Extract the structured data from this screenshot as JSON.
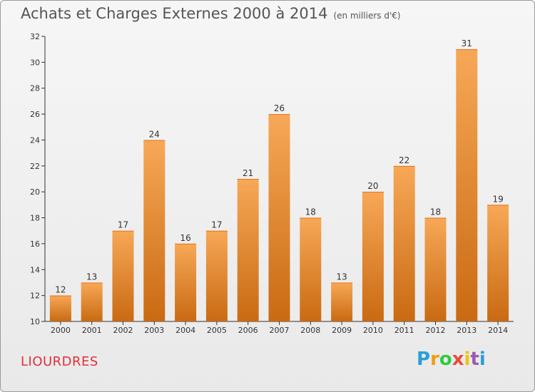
{
  "header": {
    "title": "Achats et Charges Externes 2000 à 2014",
    "subtitle": "(en milliers d'€)"
  },
  "place": "LIOURDRES",
  "logo": {
    "letters": [
      "P",
      "r",
      "o",
      "x",
      "i",
      "t",
      "i"
    ],
    "colors": [
      "#2a9fd6",
      "#f39c12",
      "#2ecc40",
      "#e74c3c",
      "#f1c40f",
      "#9b59b6",
      "#2a9fd6"
    ]
  },
  "chart_data": {
    "type": "bar",
    "title": "Achats et Charges Externes 2000 à 2014",
    "subtitle": "(en milliers d'€)",
    "categories": [
      "2000",
      "2001",
      "2002",
      "2003",
      "2004",
      "2005",
      "2006",
      "2007",
      "2008",
      "2009",
      "2010",
      "2011",
      "2012",
      "2013",
      "2014"
    ],
    "values": [
      12,
      13,
      17,
      24,
      16,
      17,
      21,
      26,
      18,
      13,
      20,
      22,
      18,
      31,
      19
    ],
    "ylim": [
      10,
      32
    ],
    "yticks": [
      10,
      12,
      14,
      16,
      18,
      20,
      22,
      24,
      26,
      28,
      30,
      32
    ],
    "grid": false,
    "bar_color": "#f08a2a"
  }
}
